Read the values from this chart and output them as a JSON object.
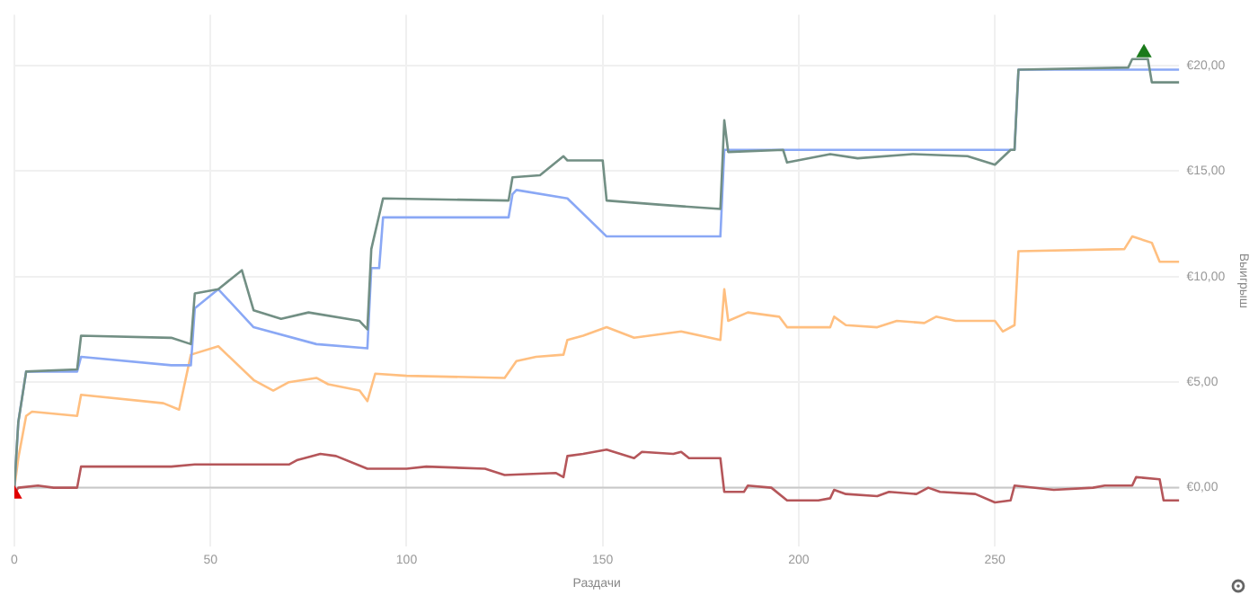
{
  "chart_data": {
    "type": "line",
    "xlabel": "Раздачи",
    "ylabel": "Выигрыш",
    "grid": true,
    "legend": false,
    "marker": "none",
    "xlim": [
      0,
      297
    ],
    "xticks": [
      0,
      50,
      100,
      150,
      200,
      250
    ],
    "ylim": [
      -2.8,
      22.4
    ],
    "yticks": [
      {
        "value": 0,
        "label": "€0,00"
      },
      {
        "value": 5,
        "label": "€5,00"
      },
      {
        "value": 10,
        "label": "€10,00"
      },
      {
        "value": 15,
        "label": "€15,00"
      },
      {
        "value": 20,
        "label": "€20,00"
      }
    ],
    "ref_lines": [
      {
        "axis": "y",
        "value": 0,
        "color": "#c8c8c8"
      }
    ],
    "series": [
      {
        "color": "#ffbf80",
        "x": [
          0,
          1,
          3,
          4.5,
          16,
          17,
          38,
          42,
          45,
          52,
          61,
          66,
          70,
          77,
          80,
          88,
          90,
          92,
          100,
          125,
          128,
          133,
          140,
          141,
          145,
          151,
          158,
          170,
          180,
          181,
          182,
          187,
          195,
          197,
          208,
          209,
          212,
          220,
          225,
          232,
          235,
          240,
          250,
          252,
          255,
          256,
          283,
          285,
          290,
          292,
          297
        ],
        "values": [
          0,
          1.4,
          3.4,
          3.6,
          3.4,
          4.4,
          4.0,
          3.7,
          6.3,
          6.7,
          5.1,
          4.6,
          5.0,
          5.2,
          4.9,
          4.6,
          4.1,
          5.4,
          5.3,
          5.2,
          6.0,
          6.2,
          6.3,
          7.0,
          7.2,
          7.6,
          7.1,
          7.4,
          7.0,
          9.4,
          7.9,
          8.3,
          8.1,
          7.6,
          7.6,
          8.1,
          7.7,
          7.6,
          7.9,
          7.8,
          8.1,
          7.9,
          7.9,
          7.4,
          7.7,
          11.2,
          11.3,
          11.9,
          11.6,
          10.7,
          10.7
        ]
      },
      {
        "color": "#b5565a",
        "x": [
          0,
          1,
          6,
          10,
          16,
          17,
          25,
          30,
          40,
          46,
          70,
          72,
          78,
          82,
          90,
          100,
          105,
          120,
          125,
          138,
          140,
          141,
          145,
          151,
          158,
          160,
          168,
          170,
          172,
          180,
          181,
          186,
          187,
          193,
          197,
          205,
          208,
          209,
          212,
          220,
          223,
          230,
          233,
          236,
          245,
          250,
          254,
          255,
          265,
          275,
          278,
          285,
          286,
          292,
          293,
          297
        ],
        "values": [
          -0.3,
          0,
          0.1,
          0,
          0,
          1.0,
          1.0,
          1.0,
          1.0,
          1.1,
          1.1,
          1.3,
          1.6,
          1.5,
          0.9,
          0.9,
          1.0,
          0.9,
          0.6,
          0.7,
          0.5,
          1.5,
          1.6,
          1.8,
          1.4,
          1.7,
          1.6,
          1.7,
          1.4,
          1.4,
          -0.2,
          -0.2,
          0.1,
          0,
          -0.6,
          -0.6,
          -0.5,
          -0.1,
          -0.3,
          -0.4,
          -0.2,
          -0.3,
          0,
          -0.2,
          -0.3,
          -0.7,
          -0.6,
          0.1,
          -0.1,
          0,
          0.1,
          0.1,
          0.5,
          0.4,
          -0.6,
          -0.6
        ]
      },
      {
        "color": "#8aa8f5",
        "x": [
          0,
          1,
          3,
          16,
          17,
          40,
          45,
          46,
          52,
          61,
          77,
          90,
          91,
          93,
          94,
          126,
          127,
          128,
          141,
          151,
          180,
          181,
          255,
          256,
          297
        ],
        "values": [
          0,
          3.1,
          5.5,
          5.5,
          6.2,
          5.8,
          5.8,
          8.5,
          9.4,
          7.6,
          6.8,
          6.6,
          10.4,
          10.4,
          12.8,
          12.8,
          13.9,
          14.1,
          13.7,
          11.9,
          11.9,
          16.0,
          16.0,
          19.8,
          19.8
        ]
      },
      {
        "color": "#728f84",
        "x": [
          0,
          1,
          3,
          16,
          17,
          40,
          45,
          46,
          52,
          58,
          61,
          68,
          75,
          88,
          90,
          91,
          94,
          126,
          127,
          134,
          140,
          141,
          150,
          151,
          165,
          180,
          181,
          182,
          196,
          197,
          208,
          215,
          229,
          243,
          250,
          254,
          255,
          256,
          284,
          285,
          289,
          290,
          297
        ],
        "values": [
          0,
          3.1,
          5.5,
          5.6,
          7.2,
          7.1,
          6.8,
          9.2,
          9.4,
          10.3,
          8.4,
          8.0,
          8.3,
          7.9,
          7.5,
          11.3,
          13.7,
          13.6,
          14.7,
          14.8,
          15.7,
          15.5,
          15.5,
          13.6,
          13.4,
          13.2,
          17.4,
          15.9,
          16.0,
          15.4,
          15.8,
          15.6,
          15.8,
          15.7,
          15.3,
          16.0,
          16.0,
          19.8,
          19.9,
          20.3,
          20.3,
          19.2,
          19.2
        ]
      },
      {
        "type": "scatter",
        "marker": "triangle",
        "color": "#1a7a1a",
        "x": [
          288
        ],
        "values": [
          20.6
        ]
      },
      {
        "type": "scatter",
        "marker": "triangle",
        "color": "#e00000",
        "x": [
          0
        ],
        "values": [
          -0.3
        ]
      }
    ]
  }
}
